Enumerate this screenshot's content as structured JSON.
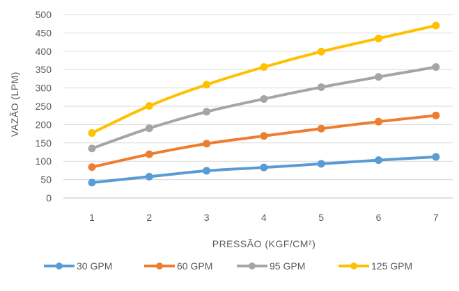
{
  "chart_data": {
    "type": "line",
    "title": "",
    "xlabel": "PRESSÃO (KGF/CM²)",
    "ylabel": "VAZÃO (LPM)",
    "categories": [
      "1",
      "2",
      "3",
      "4",
      "5",
      "6",
      "7"
    ],
    "ylim": [
      0,
      500
    ],
    "yticks": [
      0,
      50,
      100,
      150,
      200,
      250,
      300,
      350,
      400,
      450,
      500
    ],
    "grid": true,
    "legend_position": "bottom",
    "series": [
      {
        "name": "30 GPM",
        "color": "#5B9BD5",
        "values": [
          42,
          58,
          74,
          83,
          93,
          103,
          112
        ]
      },
      {
        "name": "60 GPM",
        "color": "#ED7D31",
        "values": [
          84,
          119,
          148,
          169,
          189,
          208,
          225
        ]
      },
      {
        "name": "95 GPM",
        "color": "#A5A5A5",
        "values": [
          135,
          190,
          235,
          270,
          302,
          330,
          357
        ]
      },
      {
        "name": "125 GPM",
        "color": "#FFC000",
        "values": [
          177,
          251,
          309,
          357,
          399,
          435,
          470
        ]
      }
    ]
  }
}
